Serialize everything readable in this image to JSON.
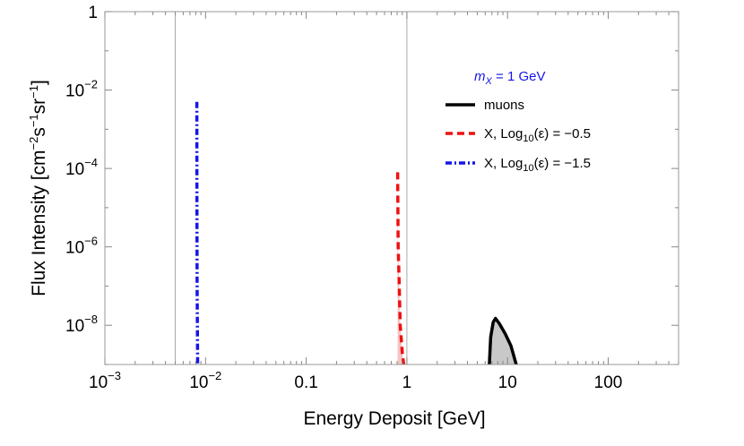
{
  "chart_data": {
    "type": "line",
    "title": "",
    "xlabel": "Energy Deposit [GeV]",
    "ylabel": "Flux Intensity [cm⁻²s⁻¹sr⁻¹]",
    "ylabel_parts": {
      "main": "Flux Intensity [cm",
      "e1": "−2",
      "s": "s",
      "e2": "−1",
      "sr": "sr",
      "e3": "−1",
      "close": "]"
    },
    "xscale": "log",
    "yscale": "log",
    "xlim": [
      0.001,
      500
    ],
    "ylim": [
      1e-09,
      1
    ],
    "x_ticks": [
      {
        "value": 0.001,
        "base": "10",
        "exp": "−3"
      },
      {
        "value": 0.01,
        "base": "10",
        "exp": "−2"
      },
      {
        "value": 0.1,
        "text": "0.1"
      },
      {
        "value": 1,
        "text": "1"
      },
      {
        "value": 10,
        "text": "10"
      },
      {
        "value": 100,
        "text": "100"
      }
    ],
    "y_ticks": [
      {
        "value": 1,
        "text": "1"
      },
      {
        "value": 0.01,
        "base": "10",
        "exp": "−2"
      },
      {
        "value": 0.0001,
        "base": "10",
        "exp": "−4"
      },
      {
        "value": 1e-06,
        "base": "10",
        "exp": "−6"
      },
      {
        "value": 1e-08,
        "base": "10",
        "exp": "−8"
      }
    ],
    "reference_lines_x": [
      0.005,
      1
    ],
    "legend_title": {
      "label": "m",
      "sub": "X",
      "rest": " = 1 GeV",
      "color": "#1515e6"
    },
    "legend_position": "right",
    "series": [
      {
        "name": "muons",
        "legend_text": "muons",
        "color": "#000000",
        "fill": "#c8c8c8",
        "style": "solid",
        "points": [
          [
            6.6,
            1e-09
          ],
          [
            6.8,
            5e-09
          ],
          [
            7.2,
            1.2e-08
          ],
          [
            7.6,
            1.5e-08
          ],
          [
            8.3,
            1.1e-08
          ],
          [
            9.5,
            6e-09
          ],
          [
            10.8,
            3e-09
          ],
          [
            12.2,
            1e-09
          ]
        ]
      },
      {
        "name": "X, Log10(ε) = −0.5",
        "legend_text": {
          "prefix": "X, Log",
          "sub": "10",
          "rest": "(ε) = −0.5"
        },
        "color": "#ee1111",
        "fill": "#f5c3c3",
        "style": "dashed",
        "points": [
          [
            0.81,
            8e-05
          ],
          [
            0.82,
            1e-06
          ],
          [
            0.84,
            1e-07
          ],
          [
            0.86,
            1e-08
          ],
          [
            0.9,
            2e-09
          ],
          [
            0.93,
            1e-09
          ]
        ]
      },
      {
        "name": "X, Log10(ε) = −1.5",
        "legend_text": {
          "prefix": "X, Log",
          "sub": "10",
          "rest": "(ε) = −1.5"
        },
        "color": "#1515e6",
        "style": "dashdot",
        "points": [
          [
            0.0082,
            0.005
          ],
          [
            0.00822,
            1e-05
          ],
          [
            0.00825,
            1e-07
          ],
          [
            0.0083,
            1e-08
          ],
          [
            0.00835,
            1e-09
          ]
        ]
      }
    ]
  }
}
